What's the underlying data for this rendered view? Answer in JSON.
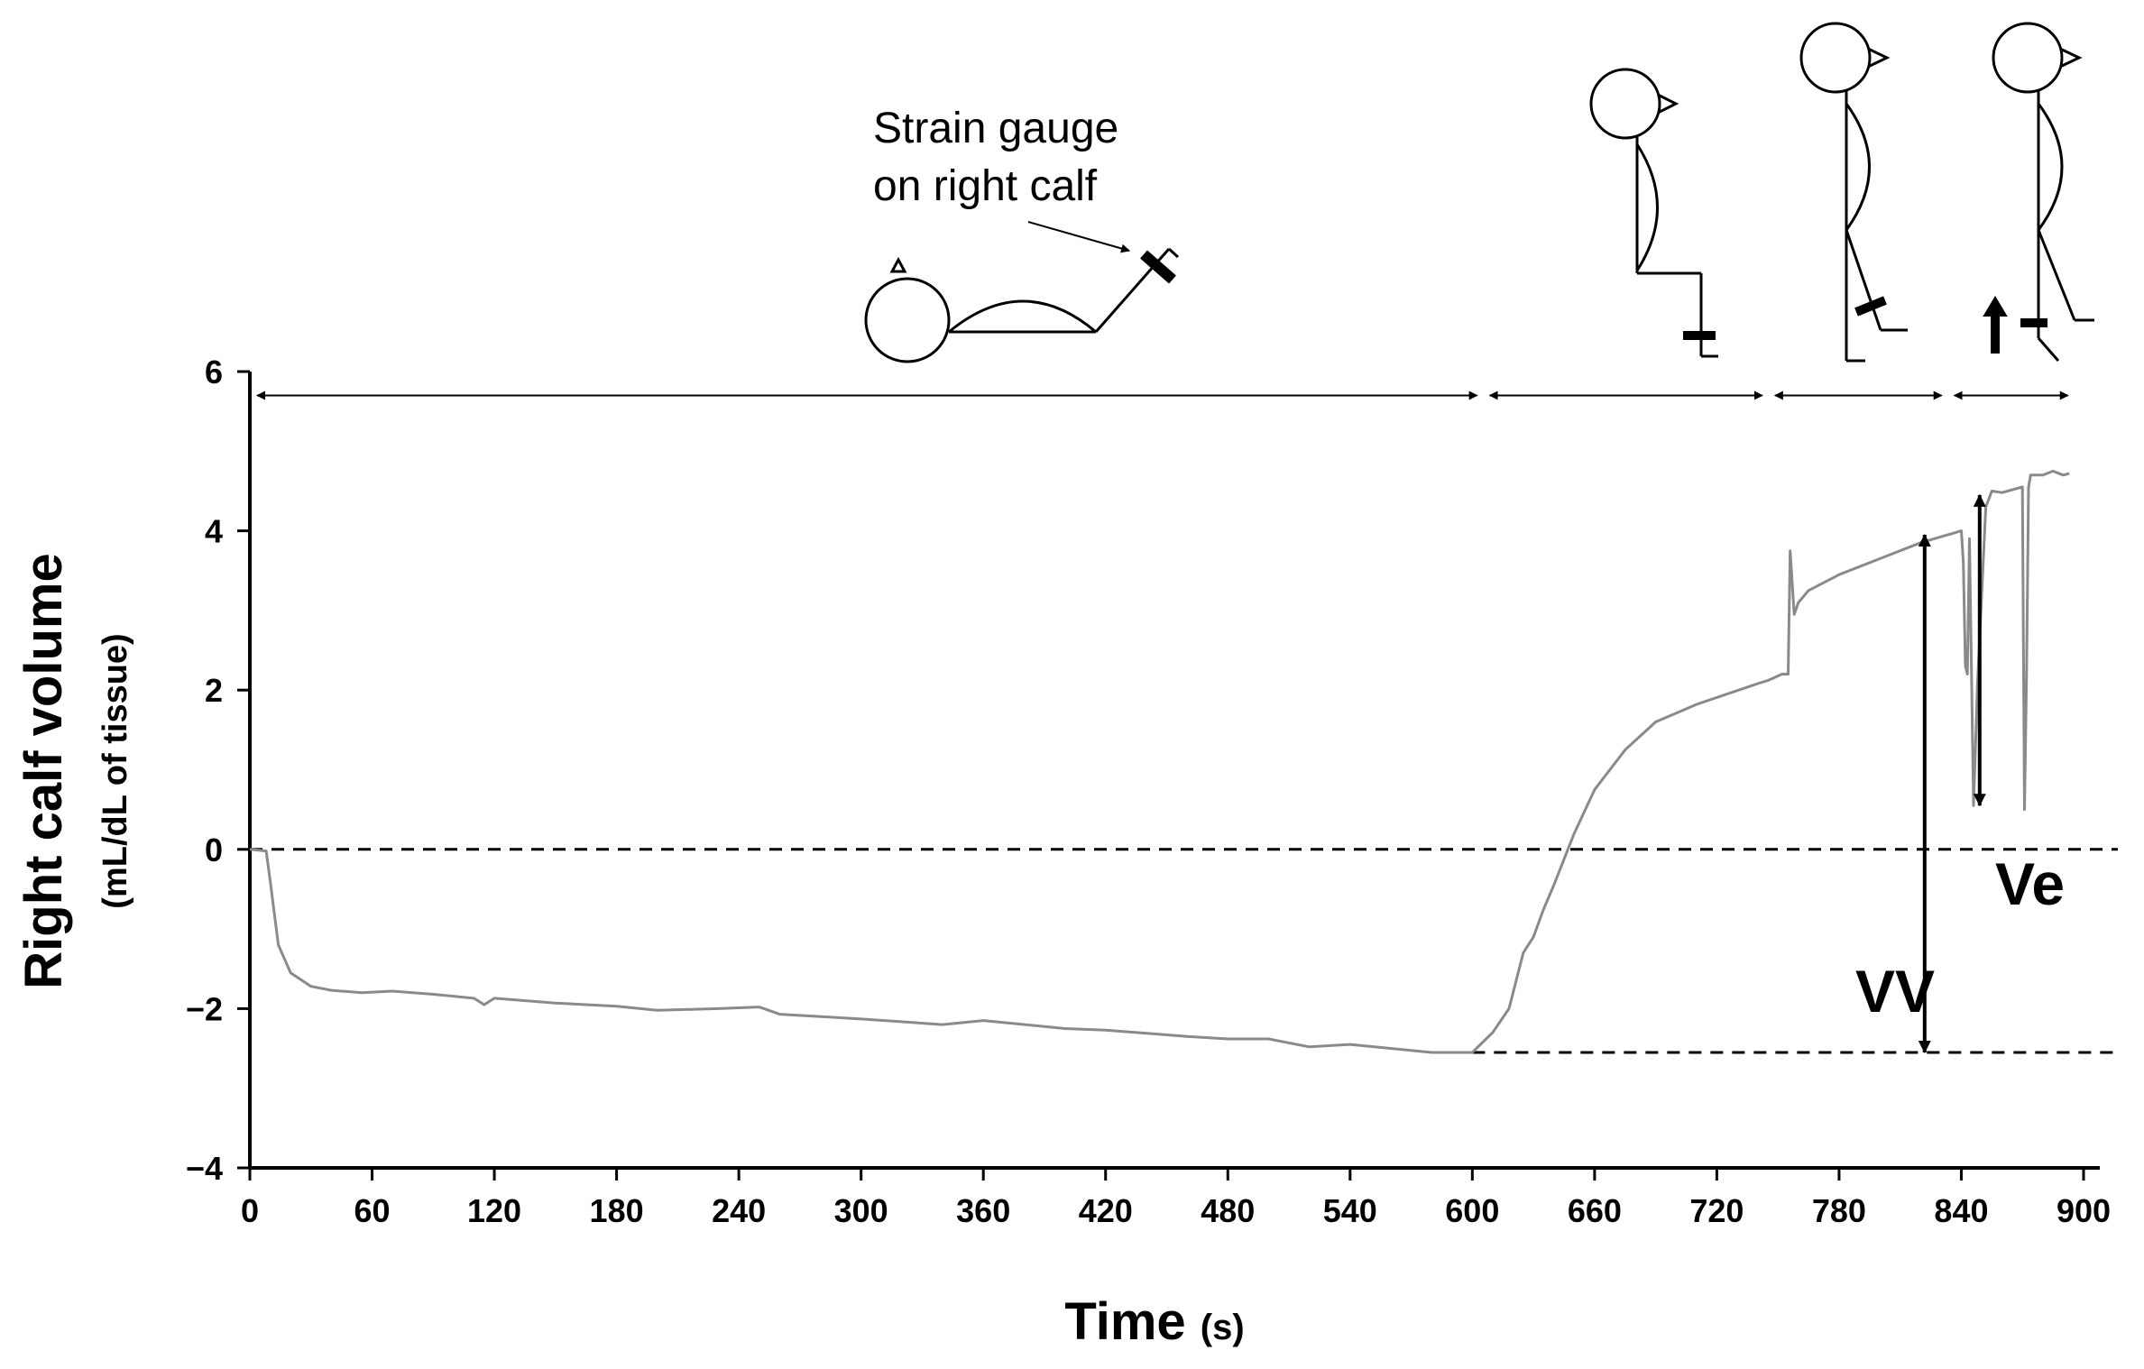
{
  "chart_data": {
    "type": "line",
    "xlabel": "Time",
    "xlabel_unit": "(s)",
    "ylabel": "Right calf volume",
    "ylabel_unit": "(mL/dL of tissue)",
    "xlim": [
      0,
      900
    ],
    "ylim": [
      -4,
      6
    ],
    "x_ticks": [
      0,
      60,
      120,
      180,
      240,
      300,
      360,
      420,
      480,
      540,
      600,
      660,
      720,
      780,
      840,
      900
    ],
    "y_ticks": [
      6,
      4,
      2,
      0,
      -2,
      -4
    ],
    "y_tick_labels": [
      "6",
      "4",
      "2",
      "0",
      "−2",
      "−4"
    ],
    "series": [
      {
        "color": "#8a8a8a",
        "x": [
          0,
          8,
          10,
          14,
          20,
          30,
          40,
          55,
          70,
          90,
          110,
          115,
          120,
          150,
          180,
          200,
          230,
          250,
          260,
          300,
          340,
          360,
          400,
          420,
          460,
          480,
          500,
          520,
          540,
          580,
          600,
          610,
          618,
          622,
          625,
          630,
          635,
          640,
          650,
          660,
          675,
          690,
          710,
          725,
          740,
          745,
          752,
          755,
          756,
          758,
          760,
          765,
          780,
          800,
          820,
          840,
          841,
          842,
          843,
          844,
          846,
          848,
          852,
          855,
          860,
          870,
          871,
          872,
          873,
          874,
          876,
          880,
          885,
          890,
          893
        ],
        "y": [
          0.0,
          -0.02,
          -0.4,
          -1.2,
          -1.55,
          -1.72,
          -1.77,
          -1.8,
          -1.78,
          -1.82,
          -1.87,
          -1.95,
          -1.87,
          -1.93,
          -1.97,
          -2.02,
          -2.0,
          -1.98,
          -2.07,
          -2.13,
          -2.2,
          -2.15,
          -2.25,
          -2.27,
          -2.35,
          -2.38,
          -2.38,
          -2.48,
          -2.45,
          -2.55,
          -2.55,
          -2.3,
          -2.0,
          -1.6,
          -1.3,
          -1.1,
          -0.75,
          -0.45,
          0.2,
          0.75,
          1.25,
          1.6,
          1.82,
          1.95,
          2.08,
          2.12,
          2.2,
          2.2,
          3.75,
          2.95,
          3.1,
          3.25,
          3.45,
          3.65,
          3.85,
          4.0,
          3.6,
          2.3,
          2.2,
          3.9,
          0.55,
          2.1,
          4.3,
          4.5,
          4.48,
          4.55,
          0.5,
          2.2,
          4.55,
          4.7,
          4.7,
          4.7,
          4.75,
          4.7,
          4.72
        ]
      }
    ],
    "reference_lines": [
      {
        "y": 0,
        "style": "dashed"
      },
      {
        "y": -2.55,
        "style": "dashed",
        "x_from": 600
      }
    ],
    "phase_intervals": [
      [
        0,
        605
      ],
      [
        605,
        745
      ],
      [
        745,
        833
      ],
      [
        833,
        895
      ]
    ],
    "annotations": {
      "vv_label": "VV",
      "ve_label": "Ve",
      "strain_line1": "Strain gauge",
      "strain_line2": "on right calf",
      "vv_arrow": {
        "x": 822,
        "y_from": -2.55,
        "y_to": 3.95
      },
      "ve_arrow": {
        "x": 849,
        "y_from": 0.55,
        "y_to": 4.45
      }
    },
    "grid": false,
    "legend": "none"
  }
}
